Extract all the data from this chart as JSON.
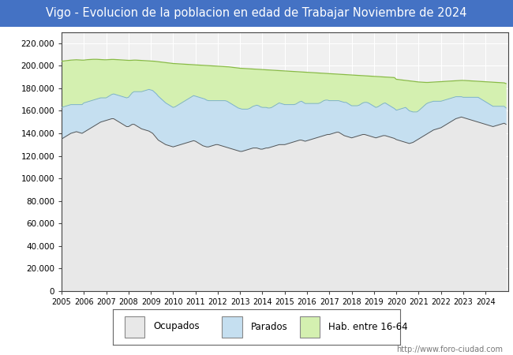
{
  "title": "Vigo - Evolucion de la poblacion en edad de Trabajar Noviembre de 2024",
  "title_bg": "#4472c4",
  "title_color": "white",
  "title_fontsize": 10.5,
  "plot_bg": "#f0f0f0",
  "ylim": [
    0,
    230000
  ],
  "yticks": [
    0,
    20000,
    40000,
    60000,
    80000,
    100000,
    120000,
    140000,
    160000,
    180000,
    200000,
    220000
  ],
  "ytick_labels": [
    "0",
    "20.000",
    "40.000",
    "60.000",
    "80.000",
    "100.000",
    "120.000",
    "140.000",
    "160.000",
    "180.000",
    "200.000",
    "220.000"
  ],
  "color_ocupados_fill": "#e8e8e8",
  "color_parados_fill": "#c5dff0",
  "color_hab_fill": "#d4f0b0",
  "color_line_ocupados": "#555555",
  "color_line_parados": "#7ab0d0",
  "color_line_hab": "#88bb44",
  "grid_color": "#ffffff",
  "footer_text": "http://www.foro-ciudad.com",
  "legend_labels": [
    "Ocupados",
    "Parados",
    "Hab. entre 16-64"
  ],
  "months_per_year": 12,
  "start_year": 2005,
  "end_year": 2024,
  "ocupados_monthly": [
    135000,
    136000,
    137000,
    138000,
    139000,
    140000,
    140500,
    141000,
    141500,
    141000,
    140500,
    140000,
    141000,
    142000,
    143000,
    144000,
    145000,
    146000,
    147000,
    148000,
    149000,
    150000,
    150500,
    151000,
    151500,
    152000,
    152500,
    153000,
    153000,
    152000,
    151000,
    150000,
    149000,
    148000,
    147000,
    146000,
    146000,
    147000,
    148000,
    148000,
    147000,
    146000,
    145000,
    144000,
    143500,
    143000,
    142500,
    142000,
    141000,
    140000,
    138000,
    136000,
    134000,
    133000,
    132000,
    131000,
    130000,
    129500,
    129000,
    128500,
    128000,
    128500,
    129000,
    129500,
    130000,
    130500,
    131000,
    131500,
    132000,
    132500,
    133000,
    133500,
    133000,
    132000,
    131000,
    130000,
    129000,
    128500,
    128000,
    128000,
    128500,
    129000,
    129500,
    130000,
    130000,
    129500,
    129000,
    128500,
    128000,
    127500,
    127000,
    126500,
    126000,
    125500,
    125000,
    124500,
    124000,
    124000,
    124500,
    125000,
    125500,
    126000,
    126500,
    127000,
    127000,
    127000,
    126500,
    126000,
    126000,
    126500,
    127000,
    127000,
    127500,
    128000,
    128500,
    129000,
    129500,
    130000,
    130000,
    130000,
    130000,
    130500,
    131000,
    131500,
    132000,
    132500,
    133000,
    133500,
    134000,
    134000,
    133500,
    133000,
    133500,
    134000,
    134500,
    135000,
    135500,
    136000,
    136500,
    137000,
    137500,
    138000,
    138500,
    139000,
    139000,
    139500,
    140000,
    140500,
    141000,
    141000,
    140000,
    139000,
    138000,
    137500,
    137000,
    136500,
    136000,
    136500,
    137000,
    137500,
    138000,
    138500,
    139000,
    139000,
    138500,
    138000,
    137500,
    137000,
    136500,
    136000,
    136500,
    137000,
    137500,
    138000,
    138000,
    137500,
    137000,
    136500,
    136000,
    135500,
    134500,
    134000,
    133500,
    133000,
    132500,
    132000,
    131500,
    131000,
    131500,
    132000,
    133000,
    134000,
    135000,
    136000,
    137000,
    138000,
    139000,
    140000,
    141000,
    142000,
    143000,
    143500,
    144000,
    144500,
    145000,
    146000,
    147000,
    148000,
    149000,
    150000,
    151000,
    152000,
    153000,
    153500,
    154000,
    154500,
    154000,
    153500,
    153000,
    152500,
    152000,
    151500,
    151000,
    150500,
    150000,
    149500,
    149000,
    148500,
    148000,
    147500,
    147000,
    146500,
    146000,
    146500,
    147000,
    147500,
    148000,
    148500,
    149000,
    148000
  ],
  "parados_monthly": [
    28000,
    27500,
    27000,
    26500,
    26000,
    25500,
    25000,
    24500,
    24000,
    24500,
    25000,
    25500,
    26000,
    25500,
    25000,
    24500,
    24000,
    23500,
    23000,
    22500,
    22000,
    21500,
    21000,
    20500,
    20000,
    20500,
    21000,
    21500,
    22000,
    22500,
    23000,
    23500,
    24000,
    24500,
    25000,
    25500,
    26000,
    27000,
    28000,
    29000,
    30000,
    31000,
    32000,
    33000,
    34000,
    35000,
    36000,
    37000,
    37500,
    38000,
    38500,
    39000,
    39000,
    38500,
    38000,
    37500,
    37000,
    36500,
    36000,
    35500,
    35000,
    35000,
    35500,
    36000,
    36500,
    37000,
    37500,
    38000,
    38500,
    39000,
    39500,
    40000,
    40000,
    40500,
    41000,
    41500,
    42000,
    42000,
    41500,
    41000,
    40500,
    40000,
    39500,
    39000,
    39000,
    39500,
    40000,
    40500,
    41000,
    41000,
    40500,
    40000,
    39500,
    39000,
    38500,
    38000,
    38000,
    37500,
    37000,
    36500,
    36000,
    36000,
    36500,
    37000,
    37500,
    38000,
    38000,
    37500,
    37000,
    36500,
    36000,
    35500,
    35000,
    35000,
    35500,
    36000,
    36500,
    37000,
    36500,
    36000,
    35500,
    35000,
    34500,
    34000,
    33500,
    33000,
    33000,
    33500,
    34000,
    34500,
    34000,
    33500,
    33000,
    32500,
    32000,
    31500,
    31000,
    30500,
    30000,
    30000,
    30500,
    31000,
    31000,
    30500,
    30000,
    29500,
    29000,
    28500,
    28000,
    28000,
    28500,
    29000,
    29500,
    30000,
    29500,
    29000,
    28500,
    28000,
    27500,
    27000,
    27000,
    27500,
    28000,
    28500,
    29000,
    29000,
    28500,
    28000,
    27500,
    27000,
    27000,
    27500,
    28000,
    28500,
    29000,
    28500,
    28000,
    27500,
    27000,
    26500,
    26000,
    27000,
    28000,
    29000,
    30000,
    31000,
    30000,
    29000,
    28000,
    27000,
    26000,
    25000,
    25000,
    25500,
    26000,
    26500,
    27000,
    27000,
    26500,
    26000,
    25500,
    25000,
    24500,
    24000,
    23500,
    23000,
    22500,
    22000,
    21500,
    21000,
    20500,
    20000,
    19500,
    19000,
    18500,
    18000,
    18000,
    18500,
    19000,
    19500,
    20000,
    20500,
    21000,
    21500,
    22000,
    21500,
    21000,
    20500,
    20000,
    19500,
    19000,
    18500,
    18000,
    17500,
    17000,
    16500,
    16000,
    15500,
    15000,
    14500
  ],
  "hab_monthly": [
    204000,
    204200,
    204400,
    204600,
    204800,
    205000,
    205100,
    205200,
    205300,
    205200,
    205100,
    205000,
    205000,
    205200,
    205400,
    205500,
    205600,
    205700,
    205700,
    205700,
    205600,
    205500,
    205400,
    205300,
    205300,
    205400,
    205500,
    205600,
    205600,
    205500,
    205400,
    205300,
    205200,
    205100,
    205000,
    204900,
    204800,
    204800,
    204900,
    205000,
    205000,
    204900,
    204800,
    204700,
    204600,
    204500,
    204400,
    204300,
    204200,
    204100,
    204000,
    203800,
    203600,
    203400,
    203200,
    203000,
    202800,
    202600,
    202400,
    202200,
    202000,
    201900,
    201800,
    201700,
    201600,
    201500,
    201400,
    201300,
    201200,
    201100,
    201000,
    200900,
    200800,
    200700,
    200600,
    200500,
    200400,
    200300,
    200200,
    200100,
    200000,
    199900,
    199800,
    199700,
    199600,
    199500,
    199400,
    199300,
    199200,
    199100,
    199000,
    198800,
    198600,
    198400,
    198200,
    198000,
    197800,
    197700,
    197600,
    197500,
    197400,
    197300,
    197200,
    197100,
    197000,
    196900,
    196800,
    196700,
    196600,
    196500,
    196400,
    196300,
    196200,
    196100,
    196000,
    195900,
    195800,
    195700,
    195600,
    195500,
    195400,
    195300,
    195200,
    195100,
    195000,
    194900,
    194800,
    194700,
    194600,
    194500,
    194400,
    194300,
    194200,
    194100,
    194000,
    193900,
    193800,
    193700,
    193600,
    193500,
    193400,
    193300,
    193200,
    193100,
    193000,
    192900,
    192800,
    192700,
    192600,
    192500,
    192400,
    192300,
    192200,
    192100,
    192000,
    191900,
    191800,
    191700,
    191600,
    191500,
    191400,
    191300,
    191200,
    191100,
    191000,
    190900,
    190800,
    190700,
    190600,
    190500,
    190400,
    190300,
    190200,
    190100,
    190000,
    189900,
    189800,
    189700,
    189600,
    189500,
    188000,
    187800,
    187600,
    187400,
    187200,
    187000,
    186800,
    186600,
    186400,
    186200,
    186000,
    185800,
    185600,
    185500,
    185400,
    185300,
    185200,
    185200,
    185300,
    185400,
    185500,
    185600,
    185700,
    185800,
    185900,
    186000,
    186100,
    186200,
    186300,
    186400,
    186500,
    186600,
    186700,
    186800,
    186900,
    187000,
    187000,
    186900,
    186800,
    186700,
    186600,
    186500,
    186400,
    186300,
    186200,
    186100,
    186000,
    185900,
    185800,
    185700,
    185600,
    185500,
    185400,
    185300,
    185200,
    185100,
    185000,
    184900,
    184800,
    184200
  ]
}
